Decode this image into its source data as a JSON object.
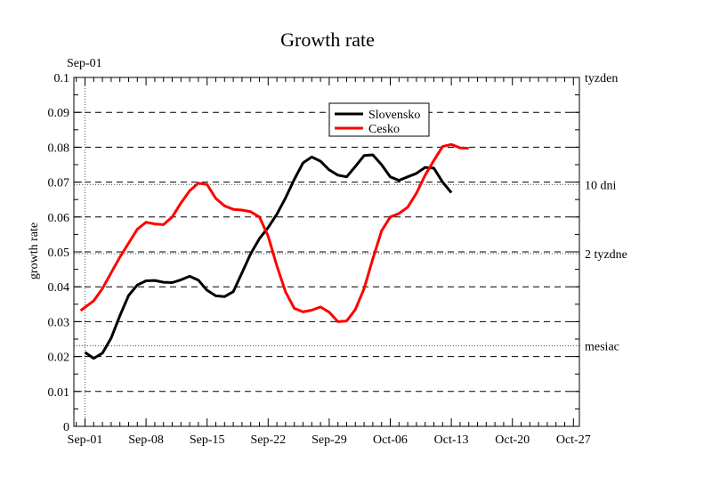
{
  "chart_data": {
    "type": "line",
    "title": "Growth rate",
    "ylabel": "growth rate",
    "xlabel": "",
    "top_date_label": "Sep-01",
    "ylim": [
      0,
      0.1
    ],
    "y_ticks": [
      "0",
      "0.01",
      "0.02",
      "0.03",
      "0.04",
      "0.05",
      "0.06",
      "0.07",
      "0.08",
      "0.09",
      "0.1"
    ],
    "x_range_days": [
      0,
      50
    ],
    "x_ticks": [
      {
        "day": 0,
        "label": "Sep-01"
      },
      {
        "day": 7,
        "label": "Sep-08"
      },
      {
        "day": 14,
        "label": "Sep-15"
      },
      {
        "day": 21,
        "label": "Sep-22"
      },
      {
        "day": 28,
        "label": "Sep-29"
      },
      {
        "day": 35,
        "label": "Oct-06"
      },
      {
        "day": 42,
        "label": "Oct-13"
      },
      {
        "day": 49,
        "label": "Oct-20"
      },
      {
        "day": 56,
        "label": "Oct-27"
      }
    ],
    "grid": "horizontal dashed",
    "legend_position": "top-right",
    "reference_lines": [
      {
        "label": "tyzden",
        "value": 0.1
      },
      {
        "label": "10 dni",
        "value": 0.0693
      },
      {
        "label": "2 tyzdne",
        "value": 0.0495
      },
      {
        "label": "mesiac",
        "value": 0.0231
      }
    ],
    "series": [
      {
        "name": "Slovensko",
        "color": "#000000",
        "points": [
          [
            0,
            0.0212
          ],
          [
            1,
            0.0195
          ],
          [
            2,
            0.021
          ],
          [
            3,
            0.0253
          ],
          [
            4,
            0.0317
          ],
          [
            5,
            0.0375
          ],
          [
            6,
            0.0405
          ],
          [
            7,
            0.0417
          ],
          [
            8,
            0.0418
          ],
          [
            9,
            0.0413
          ],
          [
            10,
            0.0412
          ],
          [
            11,
            0.042
          ],
          [
            12,
            0.043
          ],
          [
            13,
            0.0419
          ],
          [
            14,
            0.039
          ],
          [
            15,
            0.0374
          ],
          [
            16,
            0.0372
          ],
          [
            17,
            0.0386
          ],
          [
            18,
            0.044
          ],
          [
            19,
            0.0495
          ],
          [
            20,
            0.0538
          ],
          [
            21,
            0.057
          ],
          [
            22,
            0.0608
          ],
          [
            23,
            0.0655
          ],
          [
            24,
            0.0708
          ],
          [
            25,
            0.0755
          ],
          [
            26,
            0.0772
          ],
          [
            27,
            0.076
          ],
          [
            28,
            0.0735
          ],
          [
            29,
            0.072
          ],
          [
            30,
            0.0715
          ],
          [
            31,
            0.0745
          ],
          [
            32,
            0.0776
          ],
          [
            33,
            0.0778
          ],
          [
            34,
            0.075
          ],
          [
            35,
            0.0715
          ],
          [
            36,
            0.0705
          ],
          [
            37,
            0.0715
          ],
          [
            38,
            0.0725
          ],
          [
            39,
            0.0742
          ],
          [
            40,
            0.074
          ],
          [
            41,
            0.07
          ],
          [
            42,
            0.067
          ]
        ]
      },
      {
        "name": "Cesko",
        "color": "#ff0000",
        "points": [
          [
            -0.5,
            0.0332
          ],
          [
            1,
            0.036
          ],
          [
            2,
            0.0395
          ],
          [
            3,
            0.044
          ],
          [
            4,
            0.0485
          ],
          [
            5,
            0.0525
          ],
          [
            6,
            0.0565
          ],
          [
            7,
            0.0585
          ],
          [
            8,
            0.058
          ],
          [
            9,
            0.0578
          ],
          [
            10,
            0.06
          ],
          [
            11,
            0.064
          ],
          [
            12,
            0.0675
          ],
          [
            13,
            0.0697
          ],
          [
            14,
            0.0693
          ],
          [
            15,
            0.0653
          ],
          [
            16,
            0.0632
          ],
          [
            17,
            0.0622
          ],
          [
            18,
            0.062
          ],
          [
            19,
            0.0615
          ],
          [
            20,
            0.06
          ],
          [
            21,
            0.0545
          ],
          [
            22,
            0.046
          ],
          [
            23,
            0.0385
          ],
          [
            24,
            0.0338
          ],
          [
            25,
            0.0328
          ],
          [
            26,
            0.0333
          ],
          [
            27,
            0.0342
          ],
          [
            28,
            0.0327
          ],
          [
            29,
            0.03
          ],
          [
            30,
            0.0302
          ],
          [
            31,
            0.0335
          ],
          [
            32,
            0.0395
          ],
          [
            33,
            0.048
          ],
          [
            34,
            0.056
          ],
          [
            35,
            0.06
          ],
          [
            36,
            0.061
          ],
          [
            37,
            0.0628
          ],
          [
            38,
            0.0668
          ],
          [
            39,
            0.072
          ],
          [
            40,
            0.0762
          ],
          [
            41,
            0.0802
          ],
          [
            42,
            0.0808
          ],
          [
            43,
            0.0798
          ],
          [
            44,
            0.0797
          ]
        ]
      }
    ]
  }
}
